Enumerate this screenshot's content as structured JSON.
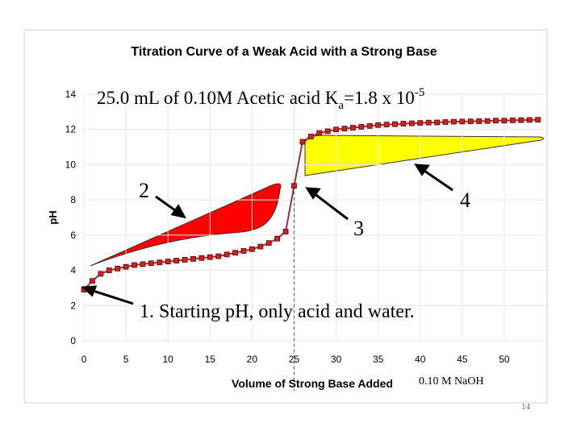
{
  "slide": {
    "subtitle_main": "25.0 mL of 0.10M Acetic acid K",
    "subtitle_sub": "a",
    "subtitle_eq": "=1.8 x 10",
    "subtitle_sup": "-5",
    "base_label": "0.10 M NaOH",
    "page_number": "14",
    "callouts": [
      {
        "label": "1. Starting pH, only acid and water."
      },
      {
        "label": "2"
      },
      {
        "label": "3"
      },
      {
        "label": "4"
      }
    ],
    "colors": {
      "series": "#993333",
      "marker": "#cc2222",
      "buffer_region": "#ff0000",
      "excess_base_region": "#ffff00"
    }
  },
  "chart_data": {
    "type": "line",
    "title": "Titration Curve of a Weak Acid with a Strong Base",
    "xlabel": "Volume of Strong Base Added",
    "ylabel": "pH",
    "xlim": [
      0,
      55
    ],
    "ylim": [
      0,
      14
    ],
    "xticks": [
      0,
      5,
      10,
      15,
      20,
      25,
      30,
      35,
      40,
      45,
      50
    ],
    "yticks": [
      0,
      2,
      4,
      6,
      8,
      10,
      12,
      14
    ],
    "equivalence_volume": 25,
    "series": [
      {
        "x": [
          0,
          1,
          2,
          3,
          4,
          5,
          6,
          7,
          8,
          9,
          10,
          11,
          12,
          13,
          14,
          15,
          16,
          17,
          18,
          19,
          20,
          21,
          22,
          23,
          24,
          25,
          26,
          27,
          28,
          29,
          30,
          31,
          32,
          33,
          34,
          35,
          36,
          37,
          38,
          39,
          40,
          41,
          42,
          43,
          44,
          45,
          46,
          47,
          48,
          49,
          50,
          51,
          52,
          53,
          54
        ],
        "y": [
          2.9,
          3.4,
          3.8,
          4.0,
          4.1,
          4.2,
          4.3,
          4.35,
          4.4,
          4.45,
          4.5,
          4.55,
          4.6,
          4.65,
          4.7,
          4.75,
          4.8,
          4.9,
          5.0,
          5.1,
          5.2,
          5.35,
          5.55,
          5.8,
          6.2,
          8.8,
          11.3,
          11.6,
          11.8,
          11.9,
          12.0,
          12.05,
          12.1,
          12.15,
          12.2,
          12.25,
          12.28,
          12.3,
          12.33,
          12.35,
          12.37,
          12.39,
          12.4,
          12.42,
          12.44,
          12.45,
          12.46,
          12.47,
          12.48,
          12.5,
          12.5,
          12.52,
          12.53,
          12.54,
          12.55
        ]
      }
    ]
  }
}
